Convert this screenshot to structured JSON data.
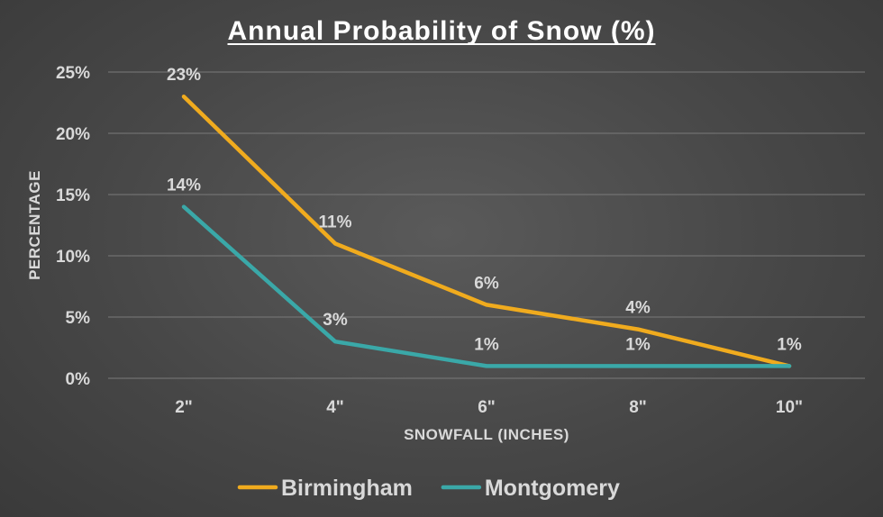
{
  "chart_data": {
    "type": "line",
    "title": "Annual Probability of Snow (%)",
    "xlabel": "SNOWFALL (INCHES)",
    "ylabel": "PERCENTAGE",
    "categories": [
      "2\"",
      "4\"",
      "6\"",
      "8\"",
      "10\""
    ],
    "y_ticks": [
      "0%",
      "5%",
      "10%",
      "15%",
      "20%",
      "25%"
    ],
    "ylim": [
      0,
      25
    ],
    "grid": true,
    "legend_position": "bottom",
    "series": [
      {
        "name": "Birmingham",
        "color": "#f0ab1e",
        "values": [
          23,
          11,
          6,
          4,
          1
        ],
        "labels": [
          "23%",
          "11%",
          "6%",
          "4%",
          "1%"
        ]
      },
      {
        "name": "Montgomery",
        "color": "#3aa8a8",
        "values": [
          14,
          3,
          1,
          1,
          1
        ],
        "labels": [
          "14%",
          "3%",
          "1%",
          "1%",
          ""
        ]
      }
    ]
  }
}
